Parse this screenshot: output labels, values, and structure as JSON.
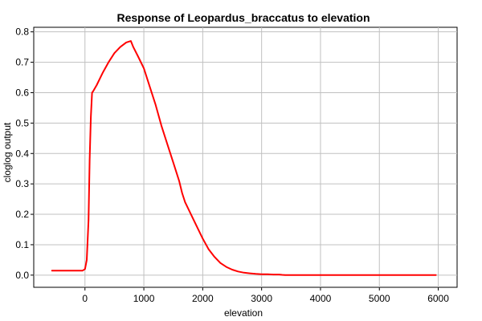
{
  "chart_data": {
    "type": "line",
    "title": "Response of Leopardus_braccatus to elevation",
    "xlabel": "elevation",
    "ylabel": "cloglog output",
    "xlim": [
      -870,
      6320
    ],
    "ylim": [
      -0.04,
      0.815
    ],
    "x_ticks": [
      0,
      1000,
      2000,
      3000,
      4000,
      5000,
      6000
    ],
    "y_ticks": [
      0.0,
      0.1,
      0.2,
      0.3,
      0.4,
      0.5,
      0.6,
      0.7,
      0.8
    ],
    "x_tick_labels": [
      "0",
      "1000",
      "2000",
      "3000",
      "4000",
      "5000",
      "6000"
    ],
    "y_tick_labels": [
      "0.0",
      "0.1",
      "0.2",
      "0.3",
      "0.4",
      "0.5",
      "0.6",
      "0.7",
      "0.8"
    ],
    "grid": true,
    "series": [
      {
        "color": "#ff0000",
        "x": [
          -560,
          -100,
          -40,
          0,
          30,
          60,
          80,
          100,
          120,
          140,
          200,
          300,
          400,
          500,
          600,
          700,
          780,
          820,
          900,
          1000,
          1100,
          1200,
          1300,
          1400,
          1500,
          1600,
          1650,
          1700,
          1800,
          1900,
          2000,
          2100,
          2200,
          2300,
          2400,
          2500,
          2600,
          2700,
          2800,
          2900,
          3000,
          3100,
          3200,
          3300,
          3350,
          3400,
          3600,
          4000,
          4500,
          5000,
          5500,
          5960
        ],
        "y": [
          0.015,
          0.015,
          0.015,
          0.02,
          0.05,
          0.18,
          0.38,
          0.52,
          0.6,
          0.605,
          0.625,
          0.665,
          0.7,
          0.73,
          0.75,
          0.765,
          0.77,
          0.75,
          0.72,
          0.68,
          0.62,
          0.56,
          0.49,
          0.43,
          0.37,
          0.31,
          0.27,
          0.24,
          0.2,
          0.16,
          0.12,
          0.085,
          0.06,
          0.04,
          0.027,
          0.018,
          0.012,
          0.008,
          0.006,
          0.004,
          0.003,
          0.003,
          0.002,
          0.002,
          0.001,
          0.0,
          0.0,
          0.0,
          0.0,
          0.0,
          0.0,
          0.0
        ]
      }
    ]
  }
}
